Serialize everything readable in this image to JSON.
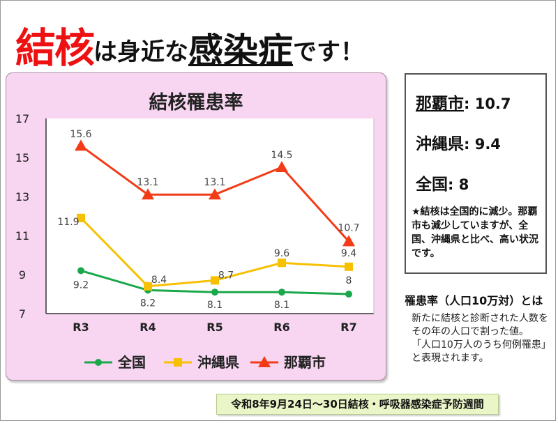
{
  "headline": {
    "part1": "結核",
    "part2": "は身近な",
    "part3": "感染症",
    "part4": "です！"
  },
  "colors": {
    "nation": "#1aa84b",
    "okinawa": "#f7c000",
    "naha": "#f23c17",
    "panel_bg": "#f8d6f2"
  },
  "chart_data": {
    "type": "line",
    "title": "結核罹患率",
    "categories": [
      "R3",
      "R4",
      "R5",
      "R6",
      "R7"
    ],
    "ylim": [
      7,
      17
    ],
    "yticks": [
      7,
      9,
      11,
      13,
      15,
      17
    ],
    "grid": false,
    "legend_position": "bottom",
    "series": [
      {
        "name": "全国",
        "values": [
          9.2,
          8.2,
          8.1,
          8.1,
          8
        ],
        "labels": [
          "9.2",
          "8.2",
          "8.1",
          "8.1",
          "8"
        ],
        "marker": "circle",
        "color": "#1aa84b"
      },
      {
        "name": "沖縄県",
        "values": [
          11.9,
          8.4,
          8.7,
          9.6,
          9.4
        ],
        "labels": [
          "11.9",
          "8.4",
          "8.7",
          "9.6",
          "9.4"
        ],
        "marker": "square",
        "color": "#f7c000"
      },
      {
        "name": "那覇市",
        "values": [
          15.6,
          13.1,
          13.1,
          14.5,
          10.7
        ],
        "labels": [
          "15.6",
          "13.1",
          "13.1",
          "14.5",
          "10.7"
        ],
        "marker": "triangle",
        "color": "#f23c17"
      }
    ]
  },
  "stats": {
    "naha_name": "那覇市",
    "naha_value": ": 10.7",
    "okinawa_name": "沖縄県",
    "okinawa_value": ": 9.4",
    "nation_name": "全国",
    "nation_value": ": 8",
    "note": "★結核は全国的に減少。那覇市も減少していますが、全国、沖縄県と比べ、高い状況です。"
  },
  "definition": {
    "title": "罹患率（人口10万対）とは",
    "line1": "新たに結核と診断された人数をその年の人口で割った値。",
    "line2": "「人口10万人のうち何例罹患」と表現されます。"
  },
  "banner": {
    "text": "令和8年9月24日～30日結核・呼吸器感染症予防週間"
  }
}
